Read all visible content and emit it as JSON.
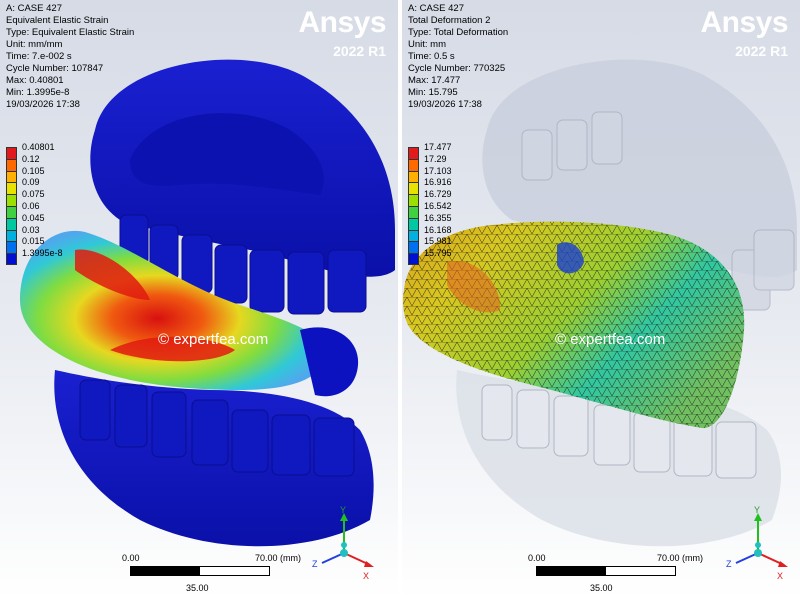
{
  "left": {
    "info": [
      "A: CASE 427",
      "Equivalent Elastic Strain",
      "Type: Equivalent Elastic Strain",
      "Unit: mm/mm",
      "Time: 7.e-002 s",
      "Cycle Number: 107847",
      "Max: 0.40801",
      "Min: 1.3995e-8",
      "19/03/2026 17:38"
    ],
    "legend": {
      "labels": [
        "0.40801",
        "0.12",
        "0.105",
        "0.09",
        "0.075",
        "0.06",
        "0.045",
        "0.03",
        "0.015",
        "1.3995e-8"
      ],
      "colors": [
        "#e31a1c",
        "#ff6a00",
        "#ffb000",
        "#e8e200",
        "#9be000",
        "#40d040",
        "#00c8a0",
        "#00b0e0",
        "#0070f0",
        "#0010d0"
      ]
    },
    "scale": {
      "zero": "0.00",
      "max": "70.00 (mm)",
      "mid": "35.00"
    },
    "watermark": "© expertfea.com",
    "triad": {
      "y": "Y",
      "z": "Z",
      "x": "X"
    }
  },
  "right": {
    "info": [
      "A: CASE 427",
      "Total Deformation 2",
      "Type: Total Deformation",
      "Unit: mm",
      "Time: 0.5 s",
      "Cycle Number: 770325",
      "Max: 17.477",
      "Min: 15.795",
      "19/03/2026 17:38"
    ],
    "legend": {
      "labels": [
        "17.477",
        "17.29",
        "17.103",
        "16.916",
        "16.729",
        "16.542",
        "16.355",
        "16.168",
        "15.981",
        "15.795"
      ],
      "colors": [
        "#e31a1c",
        "#ff6a00",
        "#ffb000",
        "#e8e200",
        "#9be000",
        "#40d040",
        "#00c8a0",
        "#00b0e0",
        "#0070f0",
        "#0010d0"
      ]
    },
    "scale": {
      "zero": "0.00",
      "max": "70.00 (mm)",
      "mid": "35.00"
    },
    "watermark": "© expertfea.com",
    "triad": {
      "y": "Y",
      "z": "Z",
      "x": "X"
    }
  },
  "brand": {
    "logo": "Ansys",
    "version": "2022 R1"
  }
}
